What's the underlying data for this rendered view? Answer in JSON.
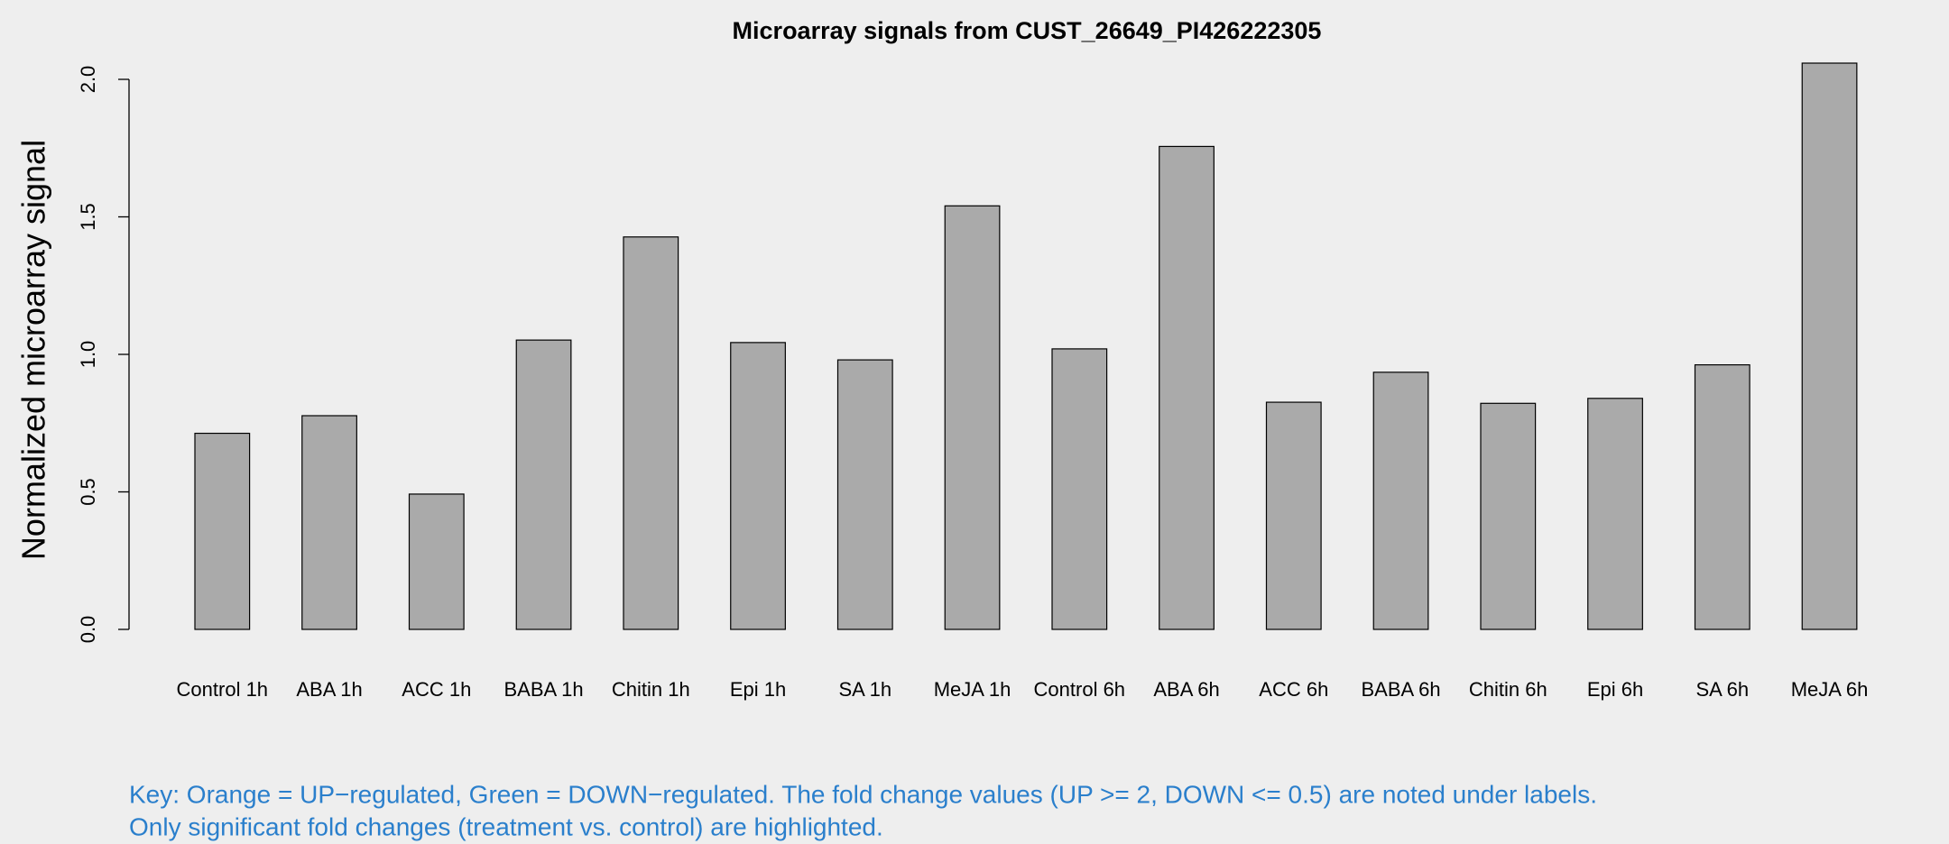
{
  "chart_data": {
    "type": "bar",
    "title": "Microarray signals from CUST_26649_PI426222305",
    "y_label": "Normalized microarray signal",
    "categories": [
      "Control 1h",
      "ABA 1h",
      "ACC 1h",
      "BABA 1h",
      "Chitin 1h",
      "Epi 1h",
      "SA 1h",
      "MeJA 1h",
      "Control 6h",
      "ABA 6h",
      "ACC 6h",
      "BABA 6h",
      "Chitin 6h",
      "Epi 6h",
      "SA 6h",
      "MeJA 6h"
    ],
    "values": [
      0.713,
      0.777,
      0.492,
      1.052,
      1.427,
      1.043,
      0.98,
      1.54,
      1.02,
      1.756,
      0.826,
      0.935,
      0.822,
      0.84,
      0.962,
      2.059
    ],
    "color": "#aaaaaa",
    "ylim": [
      0,
      2
    ],
    "yticks": [
      {
        "value": 0,
        "label": "0.0"
      },
      {
        "value": 0.5,
        "label": "0.5"
      },
      {
        "value": 1,
        "label": "1.0"
      },
      {
        "value": 1.5,
        "label": "1.5"
      },
      {
        "value": 2,
        "label": "2.0"
      }
    ],
    "notes": [
      "Key: Orange = UP−regulated, Green = DOWN−regulated. The fold change values (UP >= 2, DOWN <= 0.5) are noted under labels.",
      "Only significant fold changes (treatment vs. control) are highlighted."
    ],
    "notes_color": "#2a7fcc"
  }
}
